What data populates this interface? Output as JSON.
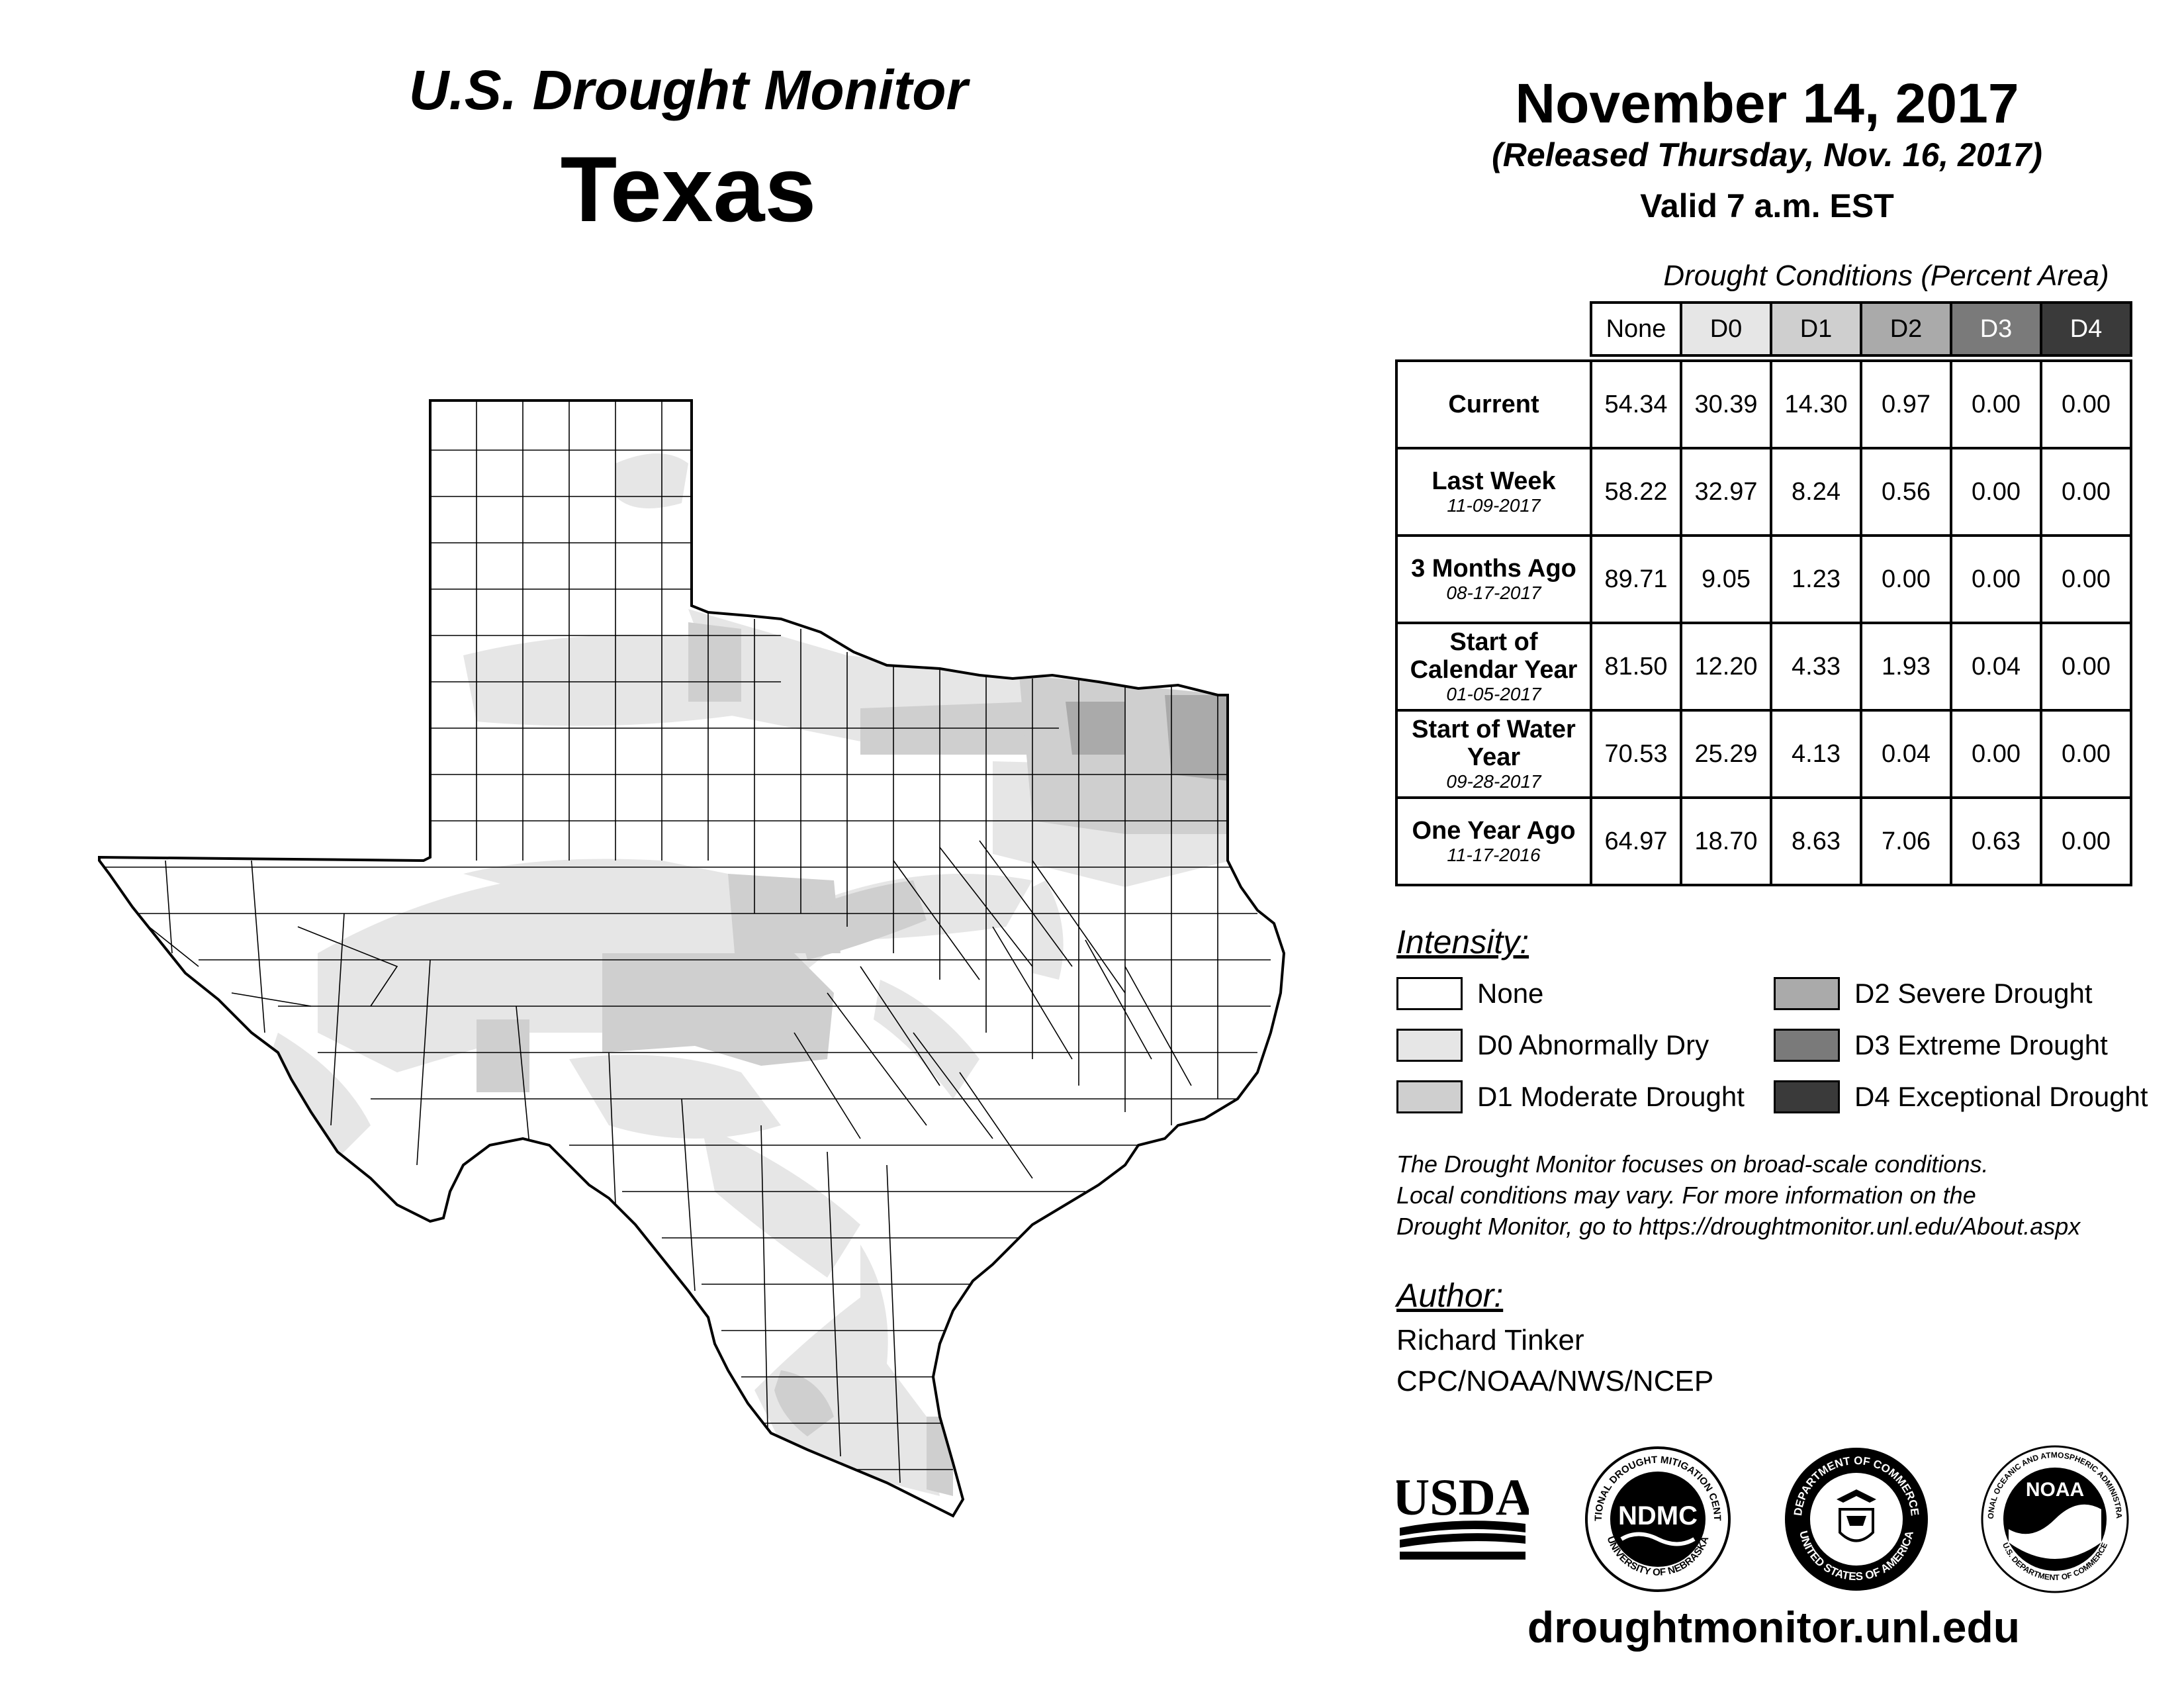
{
  "header": {
    "title": "U.S. Drought Monitor",
    "state": "Texas",
    "date": "November 14, 2017",
    "released": "(Released Thursday, Nov. 16, 2017)",
    "valid": "Valid 7 a.m. EST"
  },
  "table": {
    "caption": "Drought Conditions (Percent Area)",
    "columns": [
      "None",
      "D0",
      "D1",
      "D2",
      "D3",
      "D4"
    ],
    "rows": [
      {
        "label": "Current",
        "sub": "",
        "values": [
          "54.34",
          "30.39",
          "14.30",
          "0.97",
          "0.00",
          "0.00"
        ]
      },
      {
        "label": "Last Week",
        "sub": "11-09-2017",
        "values": [
          "58.22",
          "32.97",
          "8.24",
          "0.56",
          "0.00",
          "0.00"
        ]
      },
      {
        "label": "3 Months Ago",
        "sub": "08-17-2017",
        "values": [
          "89.71",
          "9.05",
          "1.23",
          "0.00",
          "0.00",
          "0.00"
        ]
      },
      {
        "label": "Start of Calendar Year",
        "sub": "01-05-2017",
        "values": [
          "81.50",
          "12.20",
          "4.33",
          "1.93",
          "0.04",
          "0.00"
        ]
      },
      {
        "label": "Start of Water Year",
        "sub": "09-28-2017",
        "values": [
          "70.53",
          "25.29",
          "4.13",
          "0.04",
          "0.00",
          "0.00"
        ]
      },
      {
        "label": "One Year Ago",
        "sub": "11-17-2016",
        "values": [
          "64.97",
          "18.70",
          "8.63",
          "7.06",
          "0.63",
          "0.00"
        ]
      }
    ]
  },
  "legend": {
    "title": "Intensity:",
    "items": [
      {
        "label": "None",
        "color": "#ffffff"
      },
      {
        "label": "D0 Abnormally Dry",
        "color": "#e6e6e6"
      },
      {
        "label": "D1 Moderate Drought",
        "color": "#cfcfcf"
      },
      {
        "label": "D2 Severe Drought",
        "color": "#aaaaaa"
      },
      {
        "label": "D3 Extreme Drought",
        "color": "#7a7a7a"
      },
      {
        "label": "D4 Exceptional Drought",
        "color": "#3a3a3a"
      }
    ]
  },
  "note": {
    "line1": "The Drought Monitor focuses on broad-scale conditions.",
    "line2": "Local conditions may vary. For more information on the",
    "line3": "Drought Monitor, go to https://droughtmonitor.unl.edu/About.aspx"
  },
  "author": {
    "title": "Author:",
    "name": "Richard Tinker",
    "org": "CPC/NOAA/NWS/NCEP"
  },
  "logos": {
    "usda": "USDA",
    "ndmc": "NDMC",
    "ndmc_ring": "NATIONAL DROUGHT MITIGATION CENTER",
    "ndmc_bottom": "UNIVERSITY OF NEBRASKA",
    "doc_ring": "DEPARTMENT OF COMMERCE",
    "doc_bottom": "UNITED STATES OF AMERICA",
    "noaa": "NOAA",
    "noaa_ring": "NATIONAL OCEANIC AND ATMOSPHERIC ADMINISTRATION",
    "noaa_bottom": "U.S. DEPARTMENT OF COMMERCE"
  },
  "footer": {
    "url": "droughtmonitor.unl.edu"
  },
  "map": {
    "region": "Texas",
    "drought_categories_shown": [
      "None",
      "D0",
      "D1",
      "D2"
    ]
  }
}
